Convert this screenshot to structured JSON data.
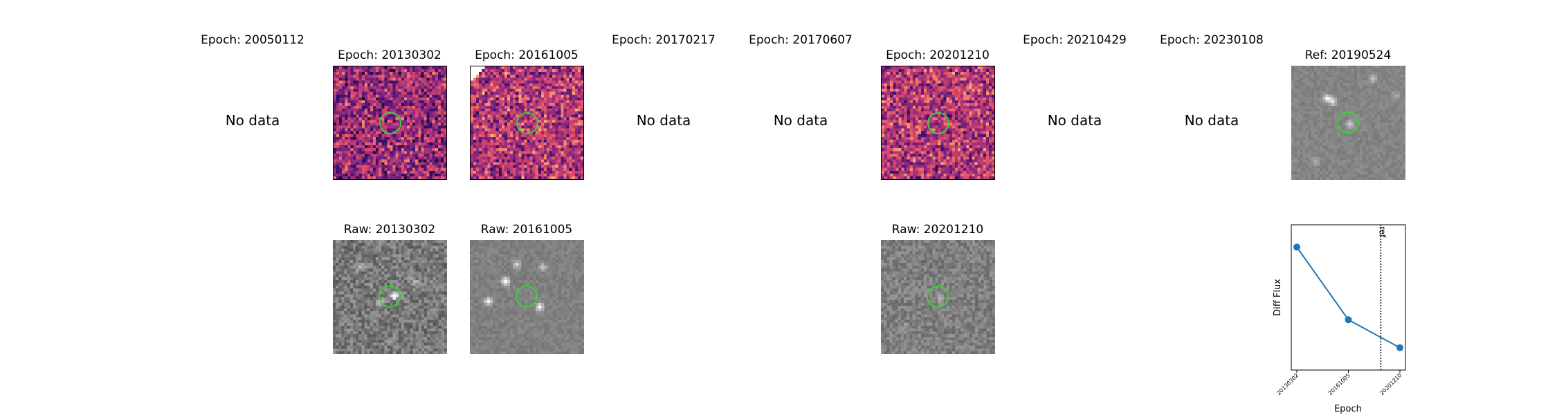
{
  "no_data_text": "No data",
  "top_row": [
    {
      "title": "Epoch: 20050112",
      "has_data": false
    },
    {
      "title": "Epoch: 20130302",
      "has_data": true
    },
    {
      "title": "Epoch: 20161005",
      "has_data": true
    },
    {
      "title": "Epoch: 20170217",
      "has_data": false
    },
    {
      "title": "Epoch: 20170607",
      "has_data": false
    },
    {
      "title": "Epoch: 20201210",
      "has_data": true
    },
    {
      "title": "Epoch: 20210429",
      "has_data": false
    },
    {
      "title": "Epoch: 20230108",
      "has_data": false
    },
    {
      "title": "Ref: 20190524",
      "has_data": true
    }
  ],
  "raw_row": [
    {
      "title": "Raw: 20130302"
    },
    {
      "title": "Raw: 20161005"
    },
    {
      "title": "Raw: 20201210"
    }
  ],
  "colors": {
    "marker": "#3bd13b",
    "series": "#1f77b4"
  },
  "chart_data": {
    "type": "line",
    "title": "",
    "xlabel": "Epoch",
    "ylabel": "Diff Flux",
    "categories": [
      "20130302",
      "20161005",
      "20201210"
    ],
    "values": [
      1.0,
      0.35,
      0.1
    ],
    "ylim": [
      -0.1,
      1.2
    ],
    "y_ticks_visible": false,
    "reference_line": {
      "label": "ref",
      "date": "20190524",
      "style": "dotted"
    },
    "grid": false
  }
}
